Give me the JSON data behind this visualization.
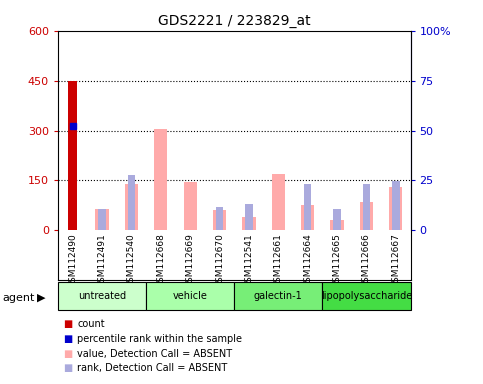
{
  "title": "GDS2221 / 223829_at",
  "samples": [
    "GSM112490",
    "GSM112491",
    "GSM112540",
    "GSM112668",
    "GSM112669",
    "GSM112670",
    "GSM112541",
    "GSM112661",
    "GSM112664",
    "GSM112665",
    "GSM112666",
    "GSM112667"
  ],
  "groups": [
    {
      "label": "untreated",
      "indices": [
        0,
        1,
        2
      ],
      "color": "#ccffcc"
    },
    {
      "label": "vehicle",
      "indices": [
        3,
        4,
        5
      ],
      "color": "#aaffaa"
    },
    {
      "label": "galectin-1",
      "indices": [
        6,
        7,
        8
      ],
      "color": "#77ee77"
    },
    {
      "label": "lipopolysaccharide",
      "indices": [
        9,
        10,
        11
      ],
      "color": "#44dd44"
    }
  ],
  "count_values": [
    450,
    null,
    null,
    null,
    null,
    null,
    null,
    null,
    null,
    null,
    null,
    null
  ],
  "percentile_rank_values": [
    315,
    null,
    null,
    null,
    null,
    null,
    null,
    null,
    null,
    null,
    null,
    null
  ],
  "absent_value_values": [
    null,
    65,
    140,
    305,
    145,
    60,
    40,
    170,
    75,
    30,
    85,
    130
  ],
  "absent_rank_values": [
    null,
    65,
    165,
    null,
    null,
    70,
    80,
    null,
    138,
    65,
    138,
    148
  ],
  "ylim_left": [
    0,
    600
  ],
  "ylim_right": [
    0,
    100
  ],
  "yticks_left": [
    0,
    150,
    300,
    450,
    600
  ],
  "yticks_right": [
    0,
    25,
    50,
    75,
    100
  ],
  "ytick_labels_left": [
    "0",
    "150",
    "300",
    "450",
    "600"
  ],
  "ytick_labels_right": [
    "0",
    "25",
    "50",
    "75",
    "100%"
  ],
  "left_axis_color": "#cc0000",
  "right_axis_color": "#0000cc",
  "count_color": "#cc0000",
  "percentile_color": "#0000cc",
  "absent_value_color": "#ffaaaa",
  "absent_rank_color": "#aaaadd",
  "xtick_bg_color": "#c8c8c8",
  "plot_bg_color": "#ffffff",
  "agent_label": "agent",
  "grid_lines": [
    150,
    300,
    450
  ],
  "legend_items": [
    {
      "color": "#cc0000",
      "label": "count"
    },
    {
      "color": "#0000cc",
      "label": "percentile rank within the sample"
    },
    {
      "color": "#ffaaaa",
      "label": "value, Detection Call = ABSENT"
    },
    {
      "color": "#aaaadd",
      "label": "rank, Detection Call = ABSENT"
    }
  ]
}
